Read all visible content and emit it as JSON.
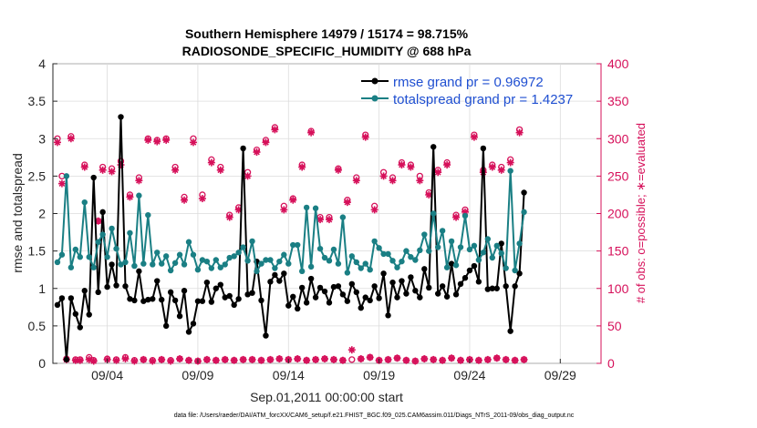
{
  "chart_data": {
    "type": "line",
    "title_line1": "Southern Hemisphere 14979 / 15174 = 98.715%",
    "title_line2": "RADIOSONDE_SPECIFIC_HUMIDITY @ 688 hPa",
    "xlabel": "Sep.01,2011 00:00:00 start",
    "ylabel_left": "rmse and totalspread",
    "ylabel_right": "# of obs: o=possible; ∗=evaluated",
    "footer": "data file: /Users/raeder/DAI/ATM_forcXX/CAM6_setup/f.e21.FHIST_BGC.f09_025.CAM6assim.011/Diags_NTrS_2011-09/obs_diag_output.nc",
    "x_range_days": [
      0.5,
      30.75
    ],
    "x_ticks": [
      {
        "day": 3.5,
        "label": "09/04"
      },
      {
        "day": 8.5,
        "label": "09/09"
      },
      {
        "day": 13.5,
        "label": "09/14"
      },
      {
        "day": 18.5,
        "label": "09/19"
      },
      {
        "day": 23.5,
        "label": "09/24"
      },
      {
        "day": 28.5,
        "label": "09/29"
      }
    ],
    "ylim_left": [
      0,
      4
    ],
    "yticks_left": [
      "0",
      "0.5",
      "1",
      "1.5",
      "2",
      "2.5",
      "3",
      "3.5",
      "4"
    ],
    "ylim_right": [
      0,
      400
    ],
    "yticks_right": [
      "0",
      "50",
      "100",
      "150",
      "200",
      "250",
      "300",
      "350",
      "400"
    ],
    "time_start_day": 0.75,
    "time_step_day": 0.25,
    "series": [
      {
        "name": "rmse",
        "legend": "rmse grand pr = 0.96972",
        "color": "#000000",
        "axis": "left",
        "values": [
          0.78,
          0.87,
          0.05,
          0.87,
          0.66,
          0.48,
          0.97,
          0.65,
          2.48,
          0.95,
          2.02,
          1.02,
          1.32,
          1.04,
          3.29,
          1.03,
          0.86,
          0.84,
          1.23,
          0.83,
          0.85,
          0.86,
          1.1,
          0.85,
          0.5,
          0.95,
          0.84,
          0.63,
          0.97,
          0.42,
          0.53,
          0.83,
          0.83,
          1.08,
          0.82,
          1.0,
          1.05,
          0.88,
          0.9,
          0.78,
          0.86,
          2.87,
          0.92,
          0.94,
          1.36,
          0.84,
          0.37,
          1.09,
          1.18,
          1.1,
          1.2,
          0.77,
          0.89,
          0.73,
          1.01,
          0.81,
          1.13,
          0.88,
          1.01,
          0.96,
          0.81,
          1.02,
          1.03,
          0.92,
          0.83,
          1.06,
          0.95,
          0.74,
          0.88,
          0.84,
          1.03,
          0.87,
          1.2,
          0.64,
          1.08,
          0.88,
          1.1,
          0.93,
          1.15,
          0.97,
          0.88,
          1.26,
          1.01,
          2.89,
          0.93,
          1.03,
          0.89,
          1.33,
          0.92,
          1.06,
          1.14,
          1.24,
          1.3,
          1.09,
          2.87,
          0.99,
          1.0,
          1.0,
          1.6,
          1.03,
          0.43,
          1.03,
          1.2,
          2.28
        ]
      },
      {
        "name": "totalspread",
        "legend": "totalspread grand pr = 1.4237",
        "color": "#1a7f84",
        "axis": "left",
        "values": [
          1.35,
          1.45,
          2.5,
          1.28,
          1.52,
          1.42,
          2.15,
          1.42,
          1.28,
          1.62,
          1.72,
          1.42,
          1.8,
          1.53,
          1.32,
          1.35,
          1.74,
          1.3,
          2.24,
          1.33,
          1.98,
          1.32,
          1.48,
          1.33,
          1.43,
          1.24,
          1.34,
          1.45,
          1.32,
          1.62,
          1.45,
          1.25,
          1.38,
          1.36,
          1.27,
          1.38,
          1.28,
          1.32,
          1.41,
          1.43,
          1.48,
          1.55,
          1.37,
          1.63,
          1.23,
          1.33,
          1.38,
          1.38,
          1.27,
          1.36,
          1.45,
          1.33,
          1.58,
          1.58,
          1.23,
          2.08,
          1.29,
          2.07,
          1.53,
          1.41,
          1.37,
          1.52,
          1.33,
          1.95,
          1.21,
          1.43,
          1.35,
          1.27,
          1.33,
          1.25,
          1.63,
          1.54,
          1.46,
          1.46,
          1.37,
          1.28,
          1.36,
          1.5,
          1.42,
          1.38,
          1.51,
          1.72,
          1.5,
          2.0,
          1.55,
          1.77,
          1.28,
          1.63,
          1.31,
          1.55,
          1.97,
          1.52,
          1.57,
          1.38,
          1.48,
          1.66,
          1.41,
          1.57,
          1.47,
          1.27,
          2.57,
          1.24,
          1.6,
          2.02
        ]
      },
      {
        "name": "# obs possible",
        "marker": "circle",
        "color": "#d6105a",
        "axis": "right",
        "values": [
          300,
          250,
          6,
          303,
          5,
          5,
          265,
          8,
          4,
          190,
          262,
          6,
          260,
          5,
          270,
          8,
          225,
          4,
          248,
          5,
          300,
          4,
          298,
          5,
          300,
          4,
          262,
          6,
          222,
          4,
          300,
          3,
          225,
          5,
          272,
          4,
          262,
          5,
          198,
          4,
          208,
          5,
          255,
          5,
          285,
          4,
          298,
          5,
          315,
          6,
          210,
          5,
          220,
          6,
          265,
          4,
          310,
          5,
          195,
          6,
          195,
          5,
          260,
          4,
          218,
          5,
          248,
          6,
          305,
          8,
          210,
          4,
          255,
          5,
          248,
          7,
          268,
          4,
          265,
          3,
          250,
          6,
          228,
          5,
          258,
          4,
          268,
          7,
          198,
          4,
          205,
          5,
          305,
          4,
          258,
          5,
          265,
          7,
          262,
          5,
          272,
          4,
          312,
          5
        ]
      },
      {
        "name": "# obs evaluated",
        "marker": "asterisk",
        "color": "#d6105a",
        "axis": "right",
        "values": [
          295,
          240,
          5,
          300,
          4,
          4,
          262,
          5,
          3,
          190,
          258,
          5,
          256,
          4,
          265,
          6,
          222,
          3,
          244,
          5,
          298,
          3,
          296,
          5,
          298,
          3,
          258,
          6,
          218,
          4,
          295,
          3,
          220,
          5,
          268,
          4,
          258,
          5,
          195,
          4,
          205,
          5,
          250,
          5,
          282,
          4,
          295,
          5,
          312,
          6,
          205,
          5,
          218,
          6,
          262,
          4,
          308,
          5,
          192,
          6,
          192,
          5,
          258,
          4,
          215,
          18,
          244,
          6,
          302,
          8,
          205,
          4,
          250,
          5,
          244,
          7,
          265,
          4,
          262,
          3,
          244,
          6,
          225,
          5,
          255,
          4,
          265,
          7,
          195,
          4,
          202,
          5,
          302,
          4,
          255,
          5,
          262,
          7,
          258,
          5,
          268,
          4,
          308,
          5
        ]
      }
    ]
  }
}
